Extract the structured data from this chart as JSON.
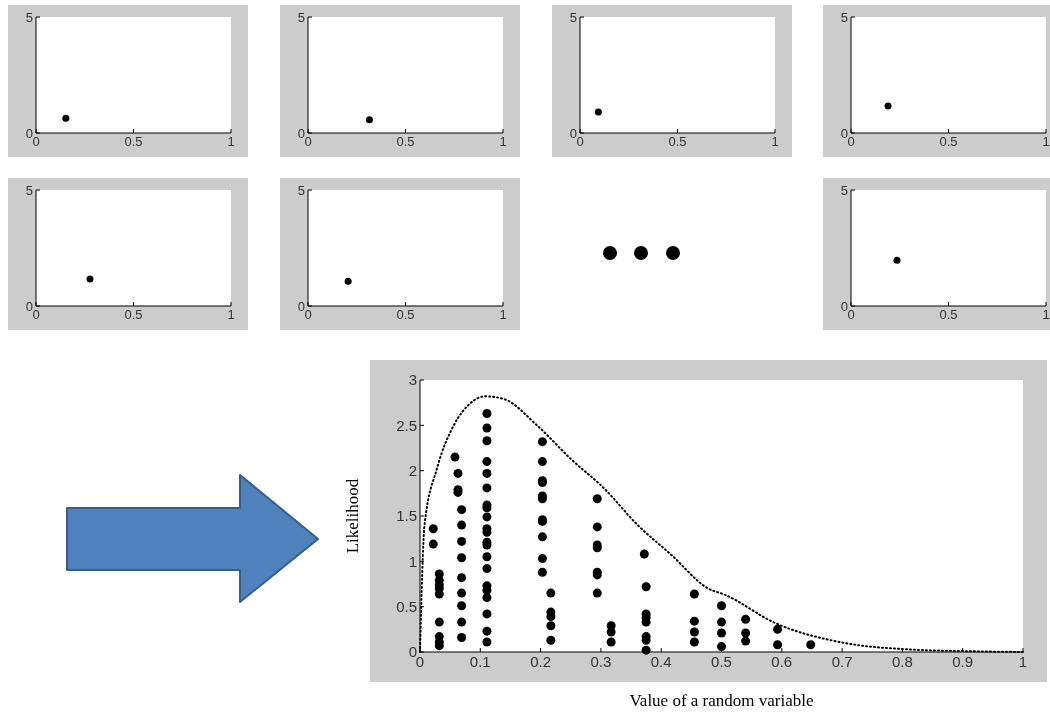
{
  "chart_data": [
    {
      "type": "scatter",
      "x": [
        0.153
      ],
      "values": [
        0.64
      ],
      "color": "#000000",
      "marker": "circle",
      "xlim": [
        0,
        1
      ],
      "ylim": [
        0,
        5
      ],
      "xticks": [
        0,
        0.5,
        1
      ],
      "yticks": [
        0,
        5
      ]
    },
    {
      "type": "scatter",
      "x": [
        0.315
      ],
      "values": [
        0.57
      ],
      "color": "#000000",
      "marker": "circle",
      "xlim": [
        0,
        1
      ],
      "ylim": [
        0,
        5
      ],
      "xticks": [
        0,
        0.5,
        1
      ],
      "yticks": [
        0,
        5
      ]
    },
    {
      "type": "scatter",
      "x": [
        0.094
      ],
      "values": [
        0.91
      ],
      "color": "#000000",
      "marker": "circle",
      "xlim": [
        0,
        1
      ],
      "ylim": [
        0,
        5
      ],
      "xticks": [
        0,
        0.5,
        1
      ],
      "yticks": [
        0,
        5
      ]
    },
    {
      "type": "scatter",
      "x": [
        0.19
      ],
      "values": [
        1.16
      ],
      "color": "#000000",
      "marker": "circle",
      "xlim": [
        0,
        1
      ],
      "ylim": [
        0,
        5
      ],
      "xticks": [
        0,
        0.5,
        1
      ],
      "yticks": [
        0,
        5
      ]
    },
    {
      "type": "scatter",
      "x": [
        0.277
      ],
      "values": [
        1.16
      ],
      "color": "#000000",
      "marker": "circle",
      "xlim": [
        0,
        1
      ],
      "ylim": [
        0,
        5
      ],
      "xticks": [
        0,
        0.5,
        1
      ],
      "yticks": [
        0,
        5
      ]
    },
    {
      "type": "scatter",
      "x": [
        0.206
      ],
      "values": [
        1.07
      ],
      "color": "#000000",
      "marker": "circle",
      "xlim": [
        0,
        1
      ],
      "ylim": [
        0,
        5
      ],
      "xticks": [
        0,
        0.5,
        1
      ],
      "yticks": [
        0,
        5
      ]
    },
    {
      "type": "scatter",
      "x": [
        0.236
      ],
      "values": [
        1.97
      ],
      "color": "#000000",
      "marker": "circle",
      "xlim": [
        0,
        1
      ],
      "ylim": [
        0,
        5
      ],
      "xticks": [
        0,
        0.5,
        1
      ],
      "yticks": [
        0,
        5
      ]
    },
    {
      "type": "scatter",
      "xlabel": "Value of a random variable",
      "ylabel": "Likelihood",
      "marker": "circle",
      "xlim": [
        0,
        1
      ],
      "ylim": [
        0,
        3
      ],
      "xticks": [
        0,
        0.1,
        0.2,
        0.3,
        0.4,
        0.5,
        0.6,
        0.7,
        0.8,
        0.9,
        1
      ],
      "yticks": [
        0,
        0.5,
        1,
        1.5,
        2,
        2.5,
        3
      ],
      "series": [
        {
          "color": "#000000",
          "x": [
            0.022,
            0.022,
            0.032,
            0.032,
            0.032,
            0.032,
            0.032,
            0.032,
            0.032,
            0.032,
            0.032,
            0.058,
            0.063,
            0.063,
            0.063,
            0.069,
            0.069,
            0.069,
            0.069,
            0.069,
            0.069,
            0.069,
            0.069,
            0.069,
            0.111,
            0.111,
            0.111,
            0.111,
            0.111,
            0.111,
            0.111,
            0.111,
            0.111,
            0.111,
            0.111,
            0.111,
            0.111,
            0.111,
            0.111,
            0.111,
            0.111,
            0.111,
            0.111,
            0.111,
            0.111,
            0.203,
            0.203,
            0.203,
            0.203,
            0.203,
            0.203,
            0.203,
            0.203,
            0.203,
            0.203,
            0.203,
            0.217,
            0.217,
            0.217,
            0.217,
            0.217,
            0.294,
            0.294,
            0.294,
            0.294,
            0.294,
            0.294,
            0.294,
            0.317,
            0.317,
            0.317,
            0.372,
            0.375,
            0.375,
            0.375,
            0.375,
            0.375,
            0.375,
            0.375,
            0.455,
            0.455,
            0.455,
            0.455,
            0.5,
            0.5,
            0.5,
            0.5,
            0.54,
            0.54,
            0.54,
            0.593,
            0.593,
            0.648
          ],
          "values": [
            1.36,
            1.19,
            0.86,
            0.79,
            0.74,
            0.7,
            0.64,
            0.33,
            0.17,
            0.11,
            0.07,
            2.15,
            1.97,
            1.79,
            1.76,
            1.57,
            1.4,
            1.22,
            1.04,
            0.82,
            0.65,
            0.51,
            0.33,
            0.16,
            2.63,
            2.47,
            2.33,
            2.1,
            1.97,
            1.81,
            1.62,
            1.59,
            1.49,
            1.36,
            1.32,
            1.21,
            1.18,
            1.05,
            0.92,
            0.73,
            0.68,
            0.6,
            0.42,
            0.23,
            0.11,
            2.32,
            2.1,
            1.89,
            1.87,
            1.72,
            1.69,
            1.46,
            1.44,
            1.27,
            1.03,
            0.88,
            0.65,
            0.44,
            0.39,
            0.29,
            0.13,
            1.69,
            1.38,
            1.18,
            1.15,
            0.88,
            0.85,
            0.65,
            0.29,
            0.22,
            0.11,
            1.08,
            0.72,
            0.42,
            0.38,
            0.33,
            0.17,
            0.13,
            0.02,
            0.64,
            0.34,
            0.22,
            0.11,
            0.51,
            0.33,
            0.21,
            0.06,
            0.36,
            0.21,
            0.12,
            0.25,
            0.08,
            0.08
          ]
        },
        {
          "type": "line",
          "color": "#000000",
          "marker": "none",
          "line_style": "dotted",
          "x": [
            0,
            0.0075,
            0.028,
            0.056,
            0.083,
            0.108,
            0.139,
            0.194,
            0.25,
            0.306,
            0.361,
            0.417,
            0.478,
            0.506,
            0.589,
            0.704,
            0.806,
            0.9,
            1
          ],
          "values": [
            0,
            1.4,
            2.02,
            2.5,
            2.74,
            2.82,
            2.79,
            2.5,
            2.13,
            1.8,
            1.4,
            1.07,
            0.7,
            0.63,
            0.32,
            0.1,
            0.03,
            0.01,
            0
          ]
        }
      ]
    }
  ]
}
